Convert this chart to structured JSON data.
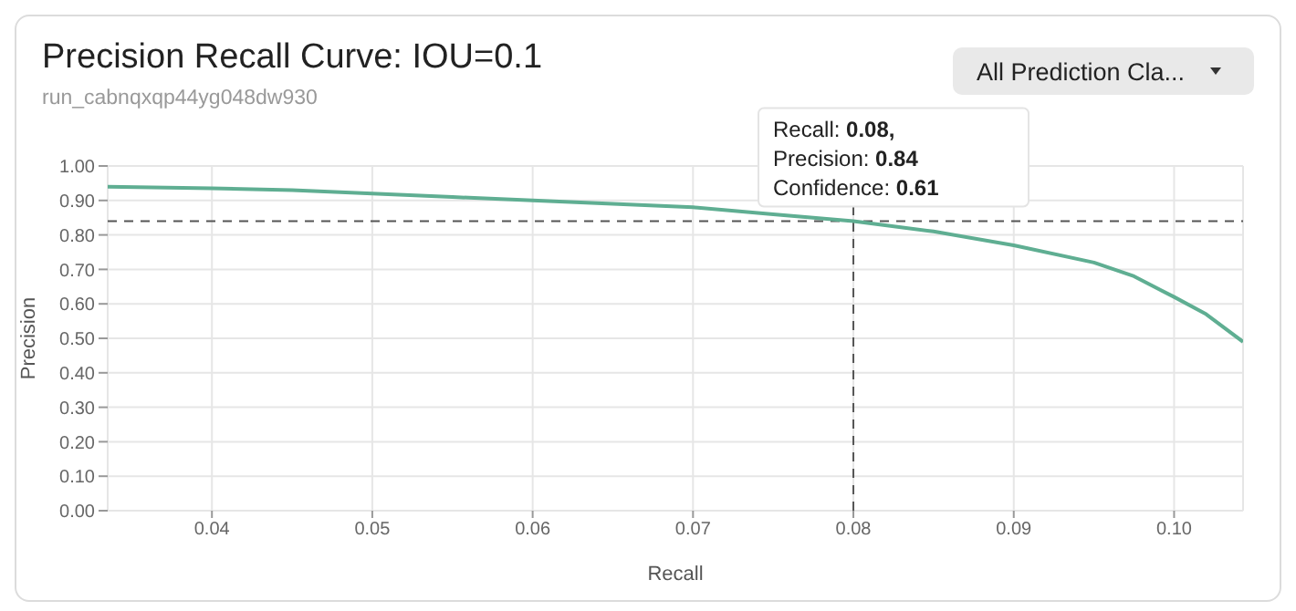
{
  "chart_data": {
    "type": "line",
    "title": "Precision Recall Curve: IOU=0.1",
    "subtitle": "run_cabnqxqp44yg048dw930",
    "xlabel": "Recall",
    "ylabel": "Precision",
    "annotations": [
      "All Prediction Cla...",
      {
        "text": "Recall: 0.08,\nPrecision: 0.84\nConfidence: 0.61",
        "x": 0.08,
        "y": 0.84
      }
    ],
    "series": [
      {
        "color": "#5fae92",
        "x": [
          0.0335,
          0.04,
          0.045,
          0.05,
          0.055,
          0.06,
          0.065,
          0.07,
          0.075,
          0.08,
          0.085,
          0.09,
          0.095,
          0.0975,
          0.1,
          0.102,
          0.1043
        ],
        "values": [
          0.94,
          0.935,
          0.93,
          0.92,
          0.91,
          0.9,
          0.89,
          0.88,
          0.86,
          0.84,
          0.81,
          0.77,
          0.72,
          0.68,
          0.62,
          0.57,
          0.49
        ]
      }
    ],
    "xlim": [
      0.0335,
      0.1043
    ],
    "xticks": [
      0.04,
      0.05,
      0.06,
      0.07,
      0.08,
      0.09,
      {
        "value": 0.1,
        "label": "0.10"
      }
    ],
    "ylim": [
      0,
      1
    ],
    "yticks": [
      {
        "value": 0,
        "label": "0.00"
      },
      {
        "value": 0.1,
        "label": "0.10"
      },
      {
        "value": 0.2,
        "label": "0.20"
      },
      {
        "value": 0.3,
        "label": "0.30"
      },
      {
        "value": 0.4,
        "label": "0.40"
      },
      {
        "value": 0.5,
        "label": "0.50"
      },
      {
        "value": 0.6,
        "label": "0.60"
      },
      {
        "value": 0.7,
        "label": "0.70"
      },
      {
        "value": 0.8,
        "label": "0.80"
      },
      {
        "value": 0.9,
        "label": "0.90"
      },
      {
        "value": 1,
        "label": "1.00"
      }
    ],
    "ref_lines": [
      {
        "axis": "x",
        "value": 0.08,
        "color": "#555555",
        "line_style": "dashed"
      },
      {
        "axis": "y",
        "value": 0.84,
        "color": "#555555",
        "line_style": "dashed"
      }
    ],
    "grid": true,
    "marker": "none",
    "line_style": "solid"
  }
}
